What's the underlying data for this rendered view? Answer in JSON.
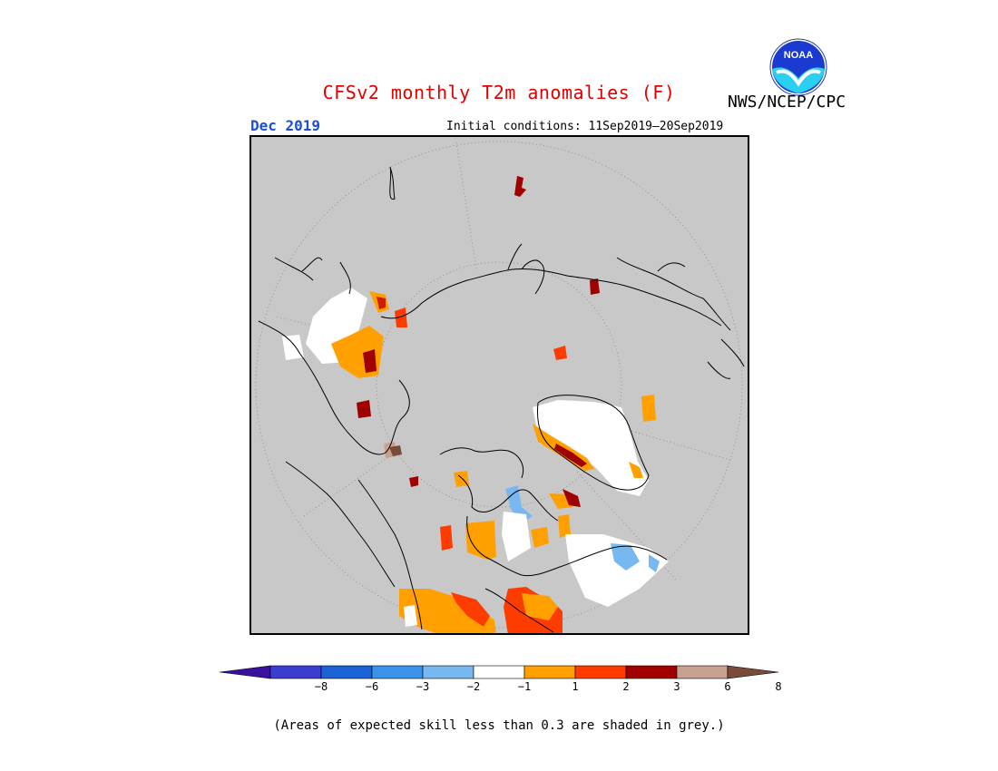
{
  "header": {
    "title": "CFSv2 monthly T2m anomalies (F)",
    "agency": "NWS/NCEP/CPC",
    "month": "Dec 2019",
    "initial_conditions": "Initial conditions: 11Sep2019—20Sep2019"
  },
  "logo": {
    "text": "NOAA"
  },
  "legend": {
    "ticks": [
      "−8",
      "−6",
      "−3",
      "−2",
      "−1",
      "1",
      "2",
      "3",
      "6",
      "8"
    ],
    "colors": [
      "#3a10a0",
      "#3c3cd0",
      "#1a62d6",
      "#3c94ea",
      "#78b8f0",
      "#ffffff",
      "#ffa000",
      "#ff3c00",
      "#a00000",
      "#c8a090",
      "#7a4a3a"
    ]
  },
  "map": {
    "background_color": "#c8c8c8",
    "projection": "polar-stereographic"
  },
  "footnote": "(Areas of expected skill less than 0.3 are shaded in grey.)"
}
